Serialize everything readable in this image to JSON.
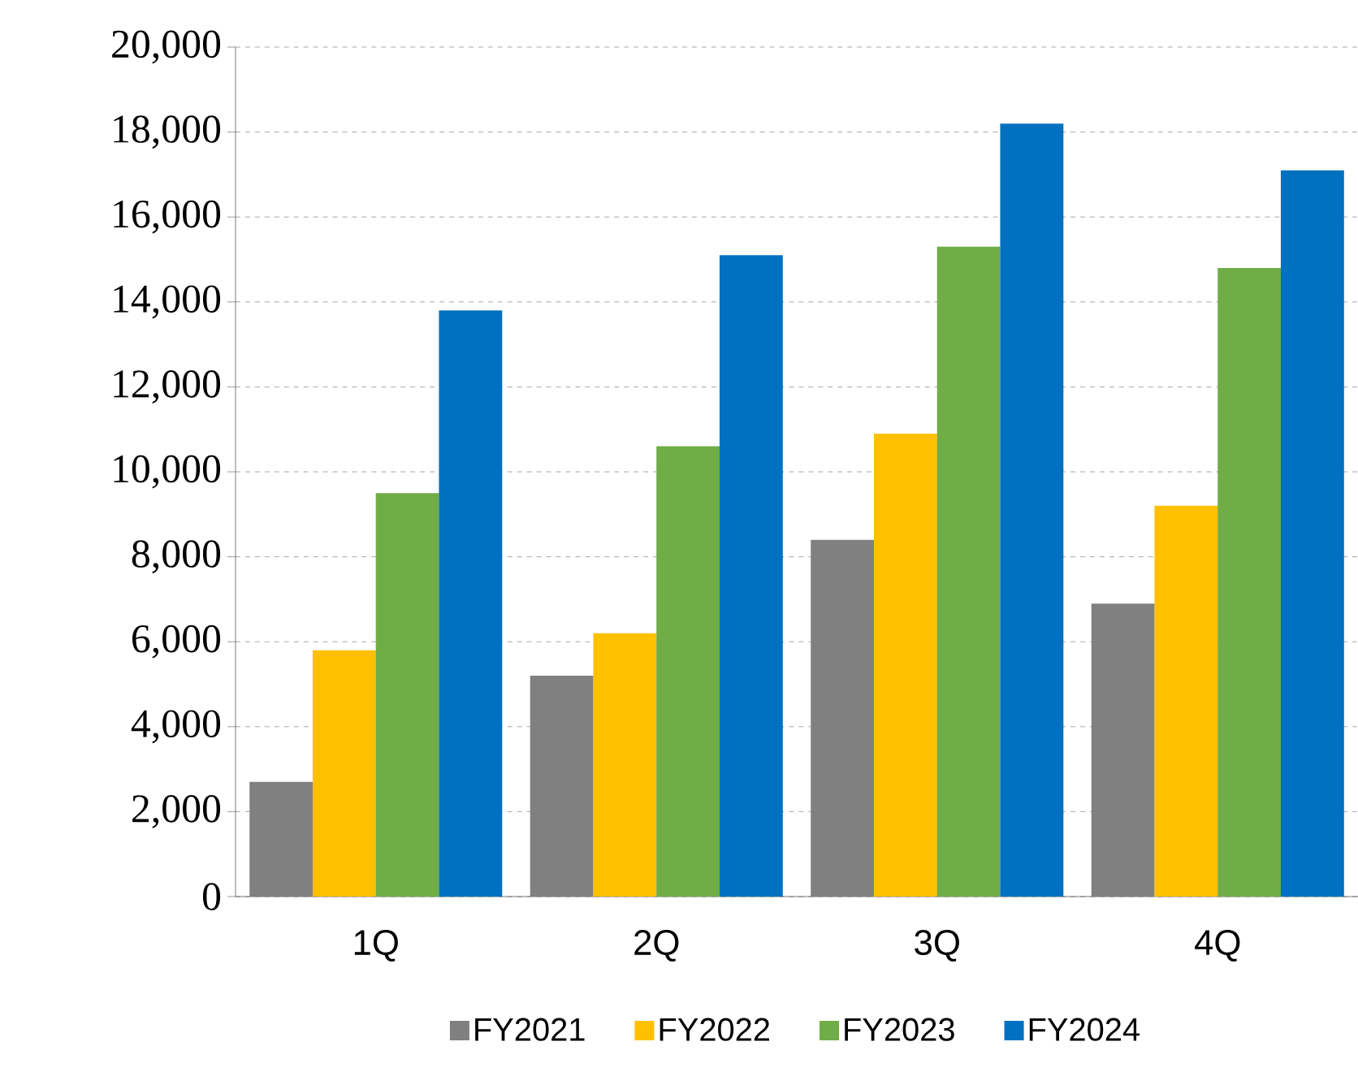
{
  "chart_data": {
    "type": "bar",
    "categories": [
      "1Q",
      "2Q",
      "3Q",
      "4Q"
    ],
    "series": [
      {
        "name": "FY2021",
        "color": "#808080",
        "values": [
          2700,
          5200,
          8400,
          6900
        ]
      },
      {
        "name": "FY2022",
        "color": "#ffc000",
        "values": [
          5800,
          6200,
          10900,
          9200
        ]
      },
      {
        "name": "FY2023",
        "color": "#70ad47",
        "values": [
          9500,
          10600,
          15300,
          14800
        ]
      },
      {
        "name": "FY2024",
        "color": "#0070c0",
        "values": [
          13800,
          15100,
          18200,
          17100
        ]
      }
    ],
    "ylim": [
      0,
      20000
    ],
    "yticks": [
      {
        "value": 0,
        "label": "0"
      },
      {
        "value": 2000,
        "label": "2,000"
      },
      {
        "value": 4000,
        "label": "4,000"
      },
      {
        "value": 6000,
        "label": "6,000"
      },
      {
        "value": 8000,
        "label": "8,000"
      },
      {
        "value": 10000,
        "label": "10,000"
      },
      {
        "value": 12000,
        "label": "12,000"
      },
      {
        "value": 14000,
        "label": "14,000"
      },
      {
        "value": 16000,
        "label": "16,000"
      },
      {
        "value": 18000,
        "label": "18,000"
      },
      {
        "value": 20000,
        "label": "20,000"
      }
    ],
    "grid": "y",
    "legend": "bottom"
  }
}
